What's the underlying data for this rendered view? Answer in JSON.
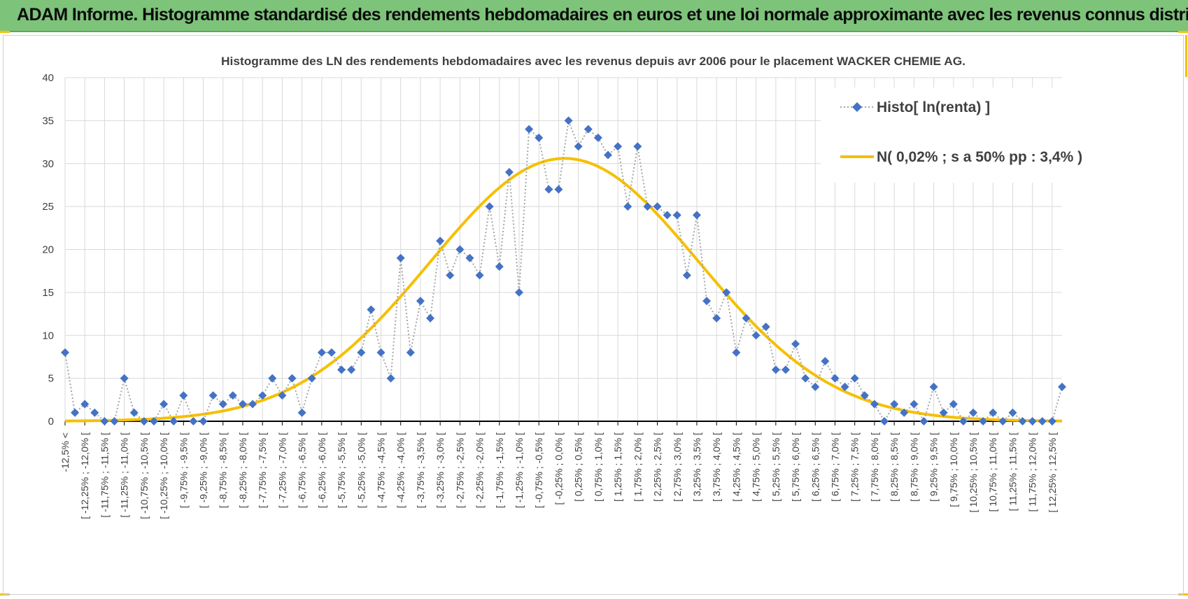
{
  "banner": {
    "title": "ADAM Informe. Histogramme standardisé des rendements hebdomadaires en euros et une loi normale approximante avec les revenus connus distribués"
  },
  "colors": {
    "banner_bg": "#7dc37a",
    "series_marker": "#4472c4",
    "series_line": "#a6a6a6",
    "normal_curve": "#f5c000",
    "corner_accent": "#f2c200"
  },
  "chart_data": {
    "type": "line",
    "title": "Histogramme des LN des rendements hebdomadaires avec les revenus depuis avr 2006 pour le placement WACKER CHEMIE AG.",
    "xlabel": "",
    "ylabel": "",
    "ylim": [
      0,
      40
    ],
    "yticks": [
      0,
      5,
      10,
      15,
      20,
      25,
      30,
      35,
      40
    ],
    "grid": true,
    "legend_position": "top-right",
    "category_labels": [
      "-12,5% <",
      "[ -12,25% ; -12,0% [",
      "[ -11,75% ; -11,5% [",
      "[ -11,25% ; -11,0% [",
      "[ -10,75% ; -10,5% [",
      "[ -10,25% ; -10,0% [",
      "[ -9,75% ; -9,5% [",
      "[ -9,25% ; -9,0% [",
      "[ -8,75% ; -8,5% [",
      "[ -8,25% ; -8,0% [",
      "[ -7,75% ; -7,5% [",
      "[ -7,25% ; -7,0% [",
      "[ -6,75% ; -6,5% [",
      "[ -6,25% ; -6,0% [",
      "[ -5,75% ; -5,5% [",
      "[ -5,25% ; -5,0% [",
      "[ -4,75% ; -4,5% [",
      "[ -4,25% ; -4,0% [",
      "[ -3,75% ; -3,5% [",
      "[ -3,25% ; -3,0% [",
      "[ -2,75% ; -2,5% [",
      "[ -2,25% ; -2,0% [",
      "[ -1,75% ; -1,5% [",
      "[ -1,25% ; -1,0% [",
      "[ -0,75% ; -0,5% [",
      "[ -0,25% ; 0,0% [",
      "[ 0,25% ; 0,5% [",
      "[ 0,75% ; 1,0% [",
      "[ 1,25% ; 1,5% [",
      "[ 1,75% ; 2,0% [",
      "[ 2,25% ; 2,5% [",
      "[ 2,75% ; 3,0% [",
      "[ 3,25% ; 3,5% [",
      "[ 3,75% ; 4,0% [",
      "[ 4,25% ; 4,5% [",
      "[ 4,75% ; 5,0% [",
      "[ 5,25% ; 5,5% [",
      "[ 5,75% ; 6,0% [",
      "[ 6,25% ; 6,5% [",
      "[ 6,75% ; 7,0% [",
      "[ 7,25% ; 7,5% [",
      "[ 7,75% ; 8,0% [",
      "[ 8,25% ; 8,5% [",
      "[ 8,75% ; 9,0% [",
      "[ 9,25% ; 9,5% [",
      "[ 9,75% ; 10,0% [",
      "[ 10,25% ; 10,5% [",
      "[ 10,75% ; 11,0% [",
      "[ 11,25% ; 11,5% [",
      "[ 11,75% ; 12,0% [",
      "[ 12,25% ; 12,5% ["
    ],
    "series": [
      {
        "name": "Histo[ ln(renta) ]",
        "style": "dotted-line-diamond",
        "values": [
          8,
          1,
          2,
          1,
          0,
          0,
          5,
          1,
          0,
          0,
          2,
          0,
          3,
          0,
          0,
          3,
          2,
          3,
          2,
          2,
          3,
          5,
          3,
          5,
          1,
          5,
          8,
          8,
          6,
          6,
          8,
          13,
          8,
          5,
          19,
          8,
          14,
          12,
          21,
          17,
          20,
          19,
          17,
          25,
          18,
          29,
          15,
          34,
          33,
          27,
          27,
          35,
          32,
          34,
          33,
          31,
          32,
          25,
          32,
          25,
          25,
          24,
          24,
          17,
          24,
          14,
          12,
          15,
          8,
          12,
          10,
          11,
          6,
          6,
          9,
          5,
          4,
          7,
          5,
          4,
          5,
          3,
          2,
          0,
          2,
          1,
          2,
          0,
          4,
          1,
          2,
          0,
          1,
          0,
          1,
          0,
          1,
          0,
          0,
          0,
          0,
          4
        ]
      },
      {
        "name": "N( 0,02% ; s a 50% pp : 3,4% )",
        "style": "smooth-line",
        "mean_index": 50.6,
        "sd_index": 13.6,
        "peak": 30.6
      }
    ]
  }
}
